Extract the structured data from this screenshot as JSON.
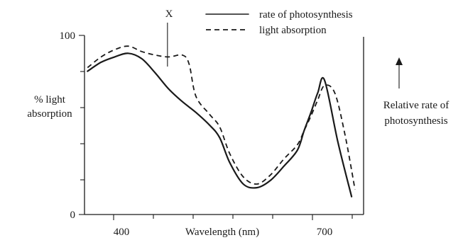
{
  "chart_data": {
    "type": "line",
    "title": "",
    "xlabel": "Wavelength (nm)",
    "ylabel_left": [
      "% light",
      "absorption"
    ],
    "ylabel_right": [
      "Relative rate of",
      "photosynthesis"
    ],
    "xlim": [
      340,
      760
    ],
    "ylim": [
      0,
      100
    ],
    "x_ticks": [
      400,
      700
    ],
    "y_ticks": [
      0,
      100
    ],
    "marker": {
      "label": "X",
      "x": 468
    },
    "series": [
      {
        "name": "rate of photosynthesis",
        "style": "solid",
        "x": [
          350,
          370,
          390,
          410,
          430,
          450,
          470,
          490,
          510,
          530,
          545,
          560,
          580,
          600,
          620,
          640,
          660,
          670,
          680,
          690,
          700,
          720,
          740
        ],
        "y": [
          80,
          85,
          88,
          90,
          87,
          79,
          70,
          63,
          57,
          50,
          43,
          29,
          17,
          15,
          19,
          27,
          36,
          47,
          57,
          68,
          75,
          40,
          10
        ]
      },
      {
        "name": "light absorption",
        "style": "dashed",
        "x": [
          350,
          370,
          390,
          410,
          430,
          450,
          470,
          490,
          500,
          510,
          530,
          545,
          560,
          580,
          600,
          620,
          640,
          660,
          670,
          680,
          690,
          700,
          715,
          730,
          745
        ],
        "y": [
          82,
          88,
          92,
          94,
          91,
          89,
          88,
          89,
          84,
          66,
          56,
          49,
          34,
          21,
          17,
          22,
          31,
          39,
          47,
          55,
          64,
          72,
          68,
          45,
          14
        ]
      }
    ],
    "legend": {
      "placement": "top"
    },
    "grid": false
  }
}
